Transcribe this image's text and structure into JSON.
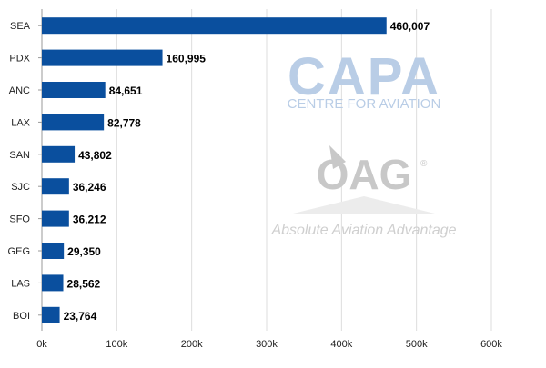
{
  "chart_data": {
    "type": "bar",
    "orientation": "horizontal",
    "title": "",
    "xlabel": "",
    "ylabel": "",
    "categories": [
      "SEA",
      "PDX",
      "ANC",
      "LAX",
      "SAN",
      "SJC",
      "SFO",
      "GEG",
      "LAS",
      "BOI"
    ],
    "values": [
      460007,
      160995,
      84651,
      82778,
      43802,
      36246,
      36212,
      29350,
      28562,
      23764
    ],
    "value_labels": [
      "460,007",
      "160,995",
      "84,651",
      "82,778",
      "43,802",
      "36,246",
      "36,212",
      "29,350",
      "28,562",
      "23,764"
    ],
    "xlim": [
      0,
      600000
    ],
    "xticks": [
      0,
      100000,
      200000,
      300000,
      400000,
      500000,
      600000
    ],
    "xtick_labels": [
      "0k",
      "100k",
      "200k",
      "300k",
      "400k",
      "500k",
      "600k"
    ],
    "grid": "vertical",
    "legend": "none",
    "bar_color": "#0a4f9e"
  },
  "watermarks": {
    "capa_logo": "CAPA",
    "capa_tagline": "CENTRE FOR AVIATION",
    "oag_logo": "OAG",
    "oag_registered": "®",
    "oag_tagline": "Absolute Aviation Advantage"
  }
}
